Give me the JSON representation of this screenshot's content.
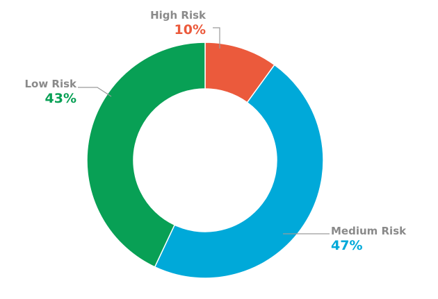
{
  "chart_data": {
    "type": "pie",
    "title": "",
    "categories": [
      "High Risk",
      "Medium Risk",
      "Low Risk"
    ],
    "values": [
      10,
      47,
      43
    ],
    "value_labels": [
      "10%",
      "47%",
      "43%"
    ],
    "colors": [
      "#eb5a3c",
      "#00a9d9",
      "#08a055"
    ],
    "label_color": "#8a8a8a",
    "leader_color": "#9a9a9a",
    "donut": true,
    "start": "top",
    "direction": "clockwise",
    "legend": "none"
  }
}
